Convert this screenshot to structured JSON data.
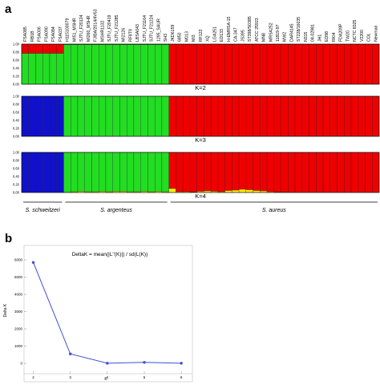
{
  "panel_a_label": "a",
  "panel_b_label": "b",
  "strains": [
    "FSA085",
    "RB1B",
    "FSA006",
    "FSA090",
    "FSA084",
    "FSA037",
    "H115100079",
    "MI51_MSHR",
    "SJTU_F20124",
    "MI260_MSHR",
    "FJ/BA/2014/4V63",
    "MSHR1132",
    "SJTU_F20419",
    "SJTU_F21285",
    "MI2126",
    "RF8T9",
    "LBSA043",
    "SJTU_F21164",
    "SJTU_F21224",
    "1295_SAUR",
    "SH3",
    "JKD6159",
    "6850",
    "M013",
    "MI3",
    "RF122",
    "XQ",
    "LGA251",
    "ED133",
    "H-EMRSA-15",
    "CA-347",
    "JS395",
    "ST398/S0385",
    "ATCC 25923",
    "MN8",
    "MRSA252",
    "11819-97",
    "MW2",
    "DAR4145",
    "ST228/16035",
    "N315",
    "04-02981",
    "JH1",
    "ED98",
    "RKI4",
    "FDA209P",
    "TW20",
    "NCTC 8325",
    "V2200",
    "COL",
    "Newman"
  ],
  "k_labels": [
    "K=2",
    "K=3",
    "K=4"
  ],
  "y_ticks": [
    "0.00",
    "0.20",
    "0.40",
    "0.60",
    "0.80",
    "1.00"
  ],
  "groups": [
    {
      "label": "S. schweitzeri",
      "start": 0,
      "end": 5
    },
    {
      "label": "S. argenteus",
      "start": 6,
      "end": 20
    },
    {
      "label": "S. aureus",
      "start": 21,
      "end": 50
    }
  ],
  "colors": {
    "red": "#ee0000",
    "green": "#22dd22",
    "blue": "#1111cc",
    "yellow": "#ffee00",
    "line": "#3d4ed8"
  },
  "structure": {
    "K2": {
      "schweitzeri": {
        "red": 0.23,
        "green": 0.77
      },
      "argenteus": {
        "green": 0.99,
        "red": 0.01
      },
      "aureus": {
        "red": 1.0
      }
    },
    "K3": {
      "schweitzeri": {
        "blue": 1.0
      },
      "argenteus": {
        "green": 1.0
      },
      "aureus": {
        "red": 1.0
      }
    },
    "K4": {
      "schweitzeri": {
        "blue": 1.0
      },
      "argenteus": {
        "green": 1.0
      },
      "aureus": {
        "red": 1.0
      },
      "yellow_argenteus": [
        0,
        0.02,
        0.03,
        0.02,
        0.02,
        0.03,
        0.02,
        0.03,
        0.03,
        0.02,
        0.02,
        0.03,
        0.02,
        0.03,
        0.02
      ],
      "yellow_aureus": [
        0.1,
        0.02,
        0.02,
        0.01,
        0.03,
        0.04,
        0.03,
        0.02,
        0.05,
        0.06,
        0.08,
        0.07,
        0.05,
        0.04,
        0.02,
        0.01,
        0.01,
        0,
        0,
        0,
        0,
        0,
        0,
        0,
        0,
        0,
        0,
        0,
        0,
        0
      ]
    }
  },
  "chart_data": {
    "type": "line",
    "title": "DeltaK = mean(|L''(K)|) / sd(L(K))",
    "xlabel": "K",
    "ylabel": "Delta K",
    "x": [
      2,
      3,
      4,
      5,
      6
    ],
    "values": [
      5850,
      550,
      10,
      60,
      10
    ],
    "xlim": [
      1.75,
      6.3
    ],
    "ylim": [
      -600,
      6000
    ],
    "x_ticks": [
      "2",
      "3",
      "4",
      "5",
      "6"
    ],
    "y_ticks": [
      "0",
      "1000",
      "2000",
      "3000",
      "4000",
      "5000",
      "6000"
    ]
  }
}
